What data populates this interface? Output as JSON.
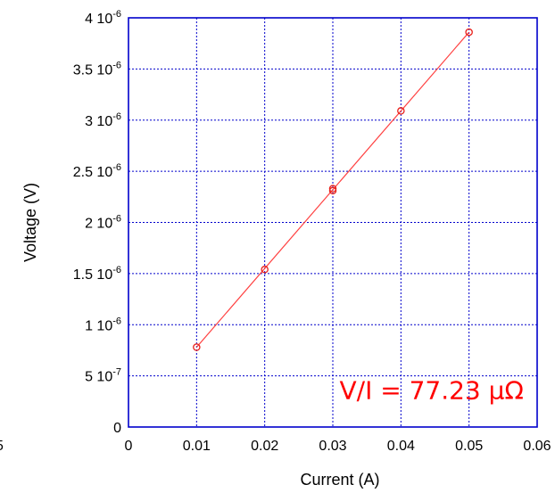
{
  "chart_data": {
    "type": "scatter",
    "xlabel": "Current (A)",
    "ylabel": "Voltage (V)",
    "xlim": [
      0,
      0.06
    ],
    "ylim": [
      0,
      4e-06
    ],
    "x_ticks": [
      {
        "value": 0,
        "label": "0"
      },
      {
        "value": 0.01,
        "label": "0.01"
      },
      {
        "value": 0.02,
        "label": "0.02"
      },
      {
        "value": 0.03,
        "label": "0.03"
      },
      {
        "value": 0.04,
        "label": "0.04"
      },
      {
        "value": 0.05,
        "label": "0.05"
      },
      {
        "value": 0.06,
        "label": "0.06"
      }
    ],
    "y_ticks": [
      {
        "value": 0,
        "mantissa": "0",
        "exponent": ""
      },
      {
        "value": 5e-07,
        "mantissa": "5 10",
        "exponent": "-7"
      },
      {
        "value": 1e-06,
        "mantissa": "1 10",
        "exponent": "-6"
      },
      {
        "value": 1.5e-06,
        "mantissa": "1.5 10",
        "exponent": "-6"
      },
      {
        "value": 2e-06,
        "mantissa": "2 10",
        "exponent": "-6"
      },
      {
        "value": 2.5e-06,
        "mantissa": "2.5 10",
        "exponent": "-6"
      },
      {
        "value": 3e-06,
        "mantissa": "3 10",
        "exponent": "-6"
      },
      {
        "value": 3.5e-06,
        "mantissa": "3.5 10",
        "exponent": "-6"
      },
      {
        "value": 4e-06,
        "mantissa": "4 10",
        "exponent": "-6"
      }
    ],
    "grid": true,
    "series": [
      {
        "x": [
          0.01,
          0.02,
          0.03,
          0.03,
          0.04,
          0.05
        ],
        "y": [
          7.8e-07,
          1.54e-06,
          2.31e-06,
          2.33e-06,
          3.09e-06,
          3.86e-06
        ],
        "color": "#e8201a",
        "marker": "circle"
      }
    ],
    "fit_line": {
      "x": [
        0.01,
        0.05
      ],
      "y": [
        7.8e-07,
        3.86e-06
      ],
      "color": "#ff4040"
    },
    "annotation": {
      "text": "V/I = 77.23 μΩ",
      "x": 0.0445,
      "y": 2.75e-07,
      "color": "#ff0000"
    },
    "colors": {
      "frame": "#0000cc",
      "grid": "#0000cc"
    }
  },
  "stray_label": "5"
}
